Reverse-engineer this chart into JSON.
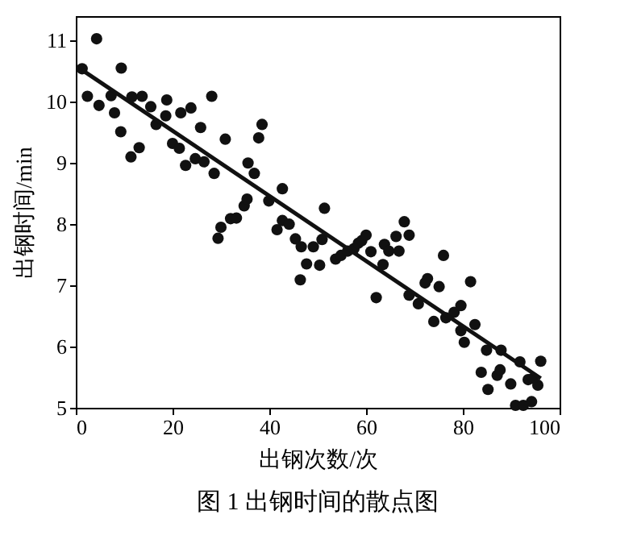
{
  "chart_data": {
    "type": "scatter",
    "title": "图 1 出钢时间的散点图",
    "xlabel": "出钢次数/次",
    "ylabel": "出钢时间/min",
    "xlim": [
      0,
      100
    ],
    "xticks": [
      0,
      20,
      40,
      60,
      80,
      100
    ],
    "ylim": [
      5,
      11.4
    ],
    "yticks": [
      5,
      6,
      7,
      8,
      9,
      10,
      11
    ],
    "grid": false,
    "series": [
      {
        "marker": "circle",
        "color": "#111111",
        "x": [
          1.3,
          2.4,
          4.3,
          4.8,
          7.3,
          8.0,
          9.4,
          9.3,
          11.4,
          11.6,
          13.1,
          13.7,
          15.5,
          16.6,
          18.8,
          18.6,
          20.0,
          21.4,
          21.7,
          22.7,
          23.8,
          24.7,
          25.8,
          26.5,
          28.1,
          28.6,
          30.9,
          29.4,
          30.0,
          32.0,
          33.2,
          35.6,
          34.8,
          35.4,
          36.9,
          37.8,
          38.5,
          39.9,
          41.6,
          42.7,
          42.7,
          44.1,
          45.4,
          46.6,
          46.4,
          47.7,
          49.1,
          50.4,
          50.9,
          51.4,
          53.7,
          54.8,
          56.2,
          57.5,
          58.4,
          59.1,
          60.0,
          61.0,
          62.1,
          63.5,
          63.8,
          64.7,
          66.2,
          66.8,
          67.9,
          68.9,
          68.9,
          70.8,
          72.2,
          72.7,
          74.0,
          75.1,
          76.0,
          76.5,
          78.2,
          79.6,
          79.6,
          80.3,
          81.6,
          82.5,
          84.9,
          83.8,
          85.2,
          87.1,
          87.7,
          87.9,
          89.9,
          90.9,
          92.5,
          94.2,
          91.8,
          93.5,
          95.5,
          96.1,
          94.5
        ],
        "values": [
          10.54,
          10.09,
          11.03,
          9.94,
          10.1,
          9.82,
          10.55,
          9.51,
          9.1,
          10.08,
          9.25,
          10.09,
          9.92,
          9.63,
          10.03,
          9.77,
          9.32,
          9.24,
          9.82,
          8.96,
          9.9,
          9.07,
          9.58,
          9.02,
          10.09,
          8.83,
          9.39,
          7.77,
          7.95,
          8.09,
          8.1,
          9.0,
          8.3,
          8.41,
          8.83,
          9.41,
          9.63,
          8.38,
          7.91,
          8.58,
          8.06,
          8.0,
          7.76,
          7.63,
          7.09,
          7.35,
          7.63,
          7.33,
          7.75,
          8.26,
          7.43,
          7.49,
          7.56,
          7.6,
          7.69,
          7.73,
          7.82,
          7.55,
          6.8,
          7.34,
          7.67,
          7.56,
          7.8,
          7.56,
          8.04,
          7.82,
          6.84,
          6.7,
          7.04,
          7.11,
          6.41,
          6.98,
          7.49,
          6.47,
          6.56,
          6.67,
          6.26,
          6.07,
          7.06,
          6.36,
          5.94,
          5.58,
          5.3,
          5.53,
          5.62,
          5.94,
          5.39,
          5.04,
          5.04,
          5.1,
          5.75,
          5.46,
          5.37,
          5.76,
          5.48
        ]
      },
      {
        "type": "line",
        "color": "#111111",
        "x": [
          1.3,
          96.1
        ],
        "values": [
          10.52,
          5.48
        ]
      }
    ]
  }
}
